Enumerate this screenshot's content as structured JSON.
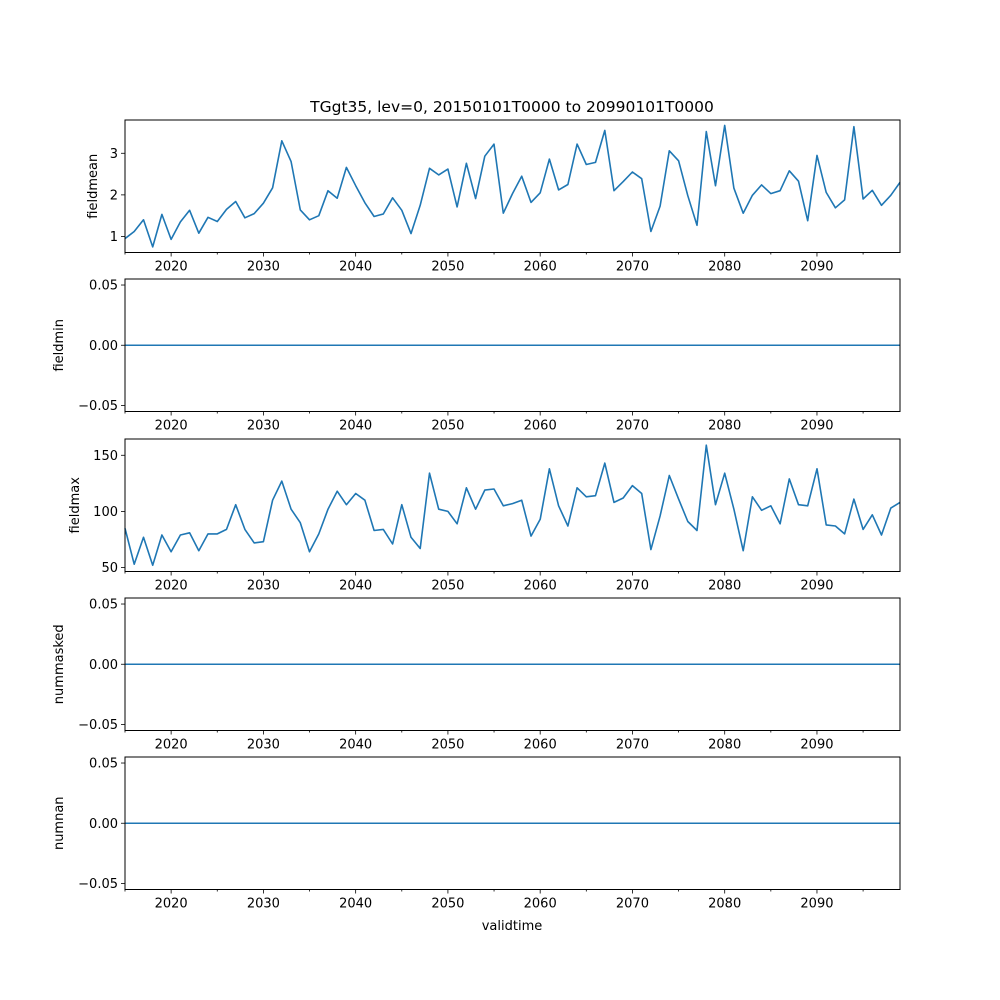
{
  "chart_data": {
    "type": "line",
    "title": "TGgt35, lev=0, 20150101T0000 to 20990101T0000",
    "xlabel": "validtime",
    "x_start": 2015,
    "xlim": [
      2015,
      2099
    ],
    "xticks": [
      2020,
      2030,
      2040,
      2050,
      2060,
      2070,
      2080,
      2090
    ],
    "line_color": "#1f77b4",
    "panels": [
      {
        "ylabel": "fieldmean",
        "ylim": [
          0.615,
          3.8
        ],
        "yticks": [
          {
            "v": 1,
            "label": "1"
          },
          {
            "v": 2,
            "label": "2"
          },
          {
            "v": 3,
            "label": "3"
          }
        ],
        "values": [
          0.95,
          1.12,
          1.4,
          0.75,
          1.53,
          0.93,
          1.35,
          1.63,
          1.08,
          1.46,
          1.36,
          1.65,
          1.84,
          1.45,
          1.55,
          1.8,
          2.17,
          3.3,
          2.8,
          1.64,
          1.4,
          1.5,
          2.1,
          1.92,
          2.66,
          2.22,
          1.81,
          1.48,
          1.54,
          1.93,
          1.63,
          1.07,
          1.75,
          2.64,
          2.48,
          2.62,
          1.71,
          2.76,
          1.91,
          2.93,
          3.22,
          1.56,
          2.03,
          2.45,
          1.82,
          2.05,
          2.86,
          2.12,
          2.25,
          3.22,
          2.73,
          2.78,
          3.55,
          2.1,
          2.32,
          2.55,
          2.39,
          1.12,
          1.73,
          3.06,
          2.82,
          1.98,
          1.27,
          3.52,
          2.22,
          3.67,
          2.16,
          1.56,
          1.99,
          2.24,
          2.03,
          2.1,
          2.58,
          2.33,
          1.38,
          2.95,
          2.06,
          1.69,
          1.88,
          3.64,
          1.9,
          2.11,
          1.75,
          1.99,
          2.3
        ]
      },
      {
        "ylabel": "fieldmin",
        "ylim": [
          -0.055,
          0.055
        ],
        "yticks": [
          {
            "v": -0.05,
            "label": "−0.05"
          },
          {
            "v": 0,
            "label": "0.00"
          },
          {
            "v": 0.05,
            "label": "0.05"
          }
        ],
        "constant": 0
      },
      {
        "ylabel": "fieldmax",
        "ylim": [
          46.5,
          164.5
        ],
        "yticks": [
          {
            "v": 50,
            "label": "50"
          },
          {
            "v": 100,
            "label": "100"
          },
          {
            "v": 150,
            "label": "150"
          }
        ],
        "values": [
          85,
          53,
          77,
          52,
          79,
          64,
          79,
          81,
          65,
          80,
          80,
          84,
          106,
          84,
          72,
          73,
          110,
          127,
          102,
          90,
          64,
          80,
          102,
          118,
          106,
          116,
          110,
          83,
          84,
          71,
          106,
          77,
          67,
          134,
          102,
          100,
          89,
          121,
          102,
          119,
          120,
          105,
          107,
          110,
          78,
          93,
          138,
          105,
          87,
          121,
          113,
          114,
          143,
          108,
          112,
          123,
          116,
          66,
          96,
          132,
          111,
          91,
          83,
          159,
          106,
          134,
          102,
          65,
          113,
          101,
          105,
          89,
          129,
          106,
          105,
          138,
          88,
          87,
          80,
          111,
          84,
          97,
          79,
          103,
          108
        ]
      },
      {
        "ylabel": "nummasked",
        "ylim": [
          -0.055,
          0.055
        ],
        "yticks": [
          {
            "v": -0.05,
            "label": "−0.05"
          },
          {
            "v": 0,
            "label": "0.00"
          },
          {
            "v": 0.05,
            "label": "0.05"
          }
        ],
        "constant": 0
      },
      {
        "ylabel": "numnan",
        "ylim": [
          -0.055,
          0.055
        ],
        "yticks": [
          {
            "v": -0.05,
            "label": "−0.05"
          },
          {
            "v": 0,
            "label": "0.00"
          },
          {
            "v": 0.05,
            "label": "0.05"
          }
        ],
        "constant": 0
      }
    ]
  }
}
